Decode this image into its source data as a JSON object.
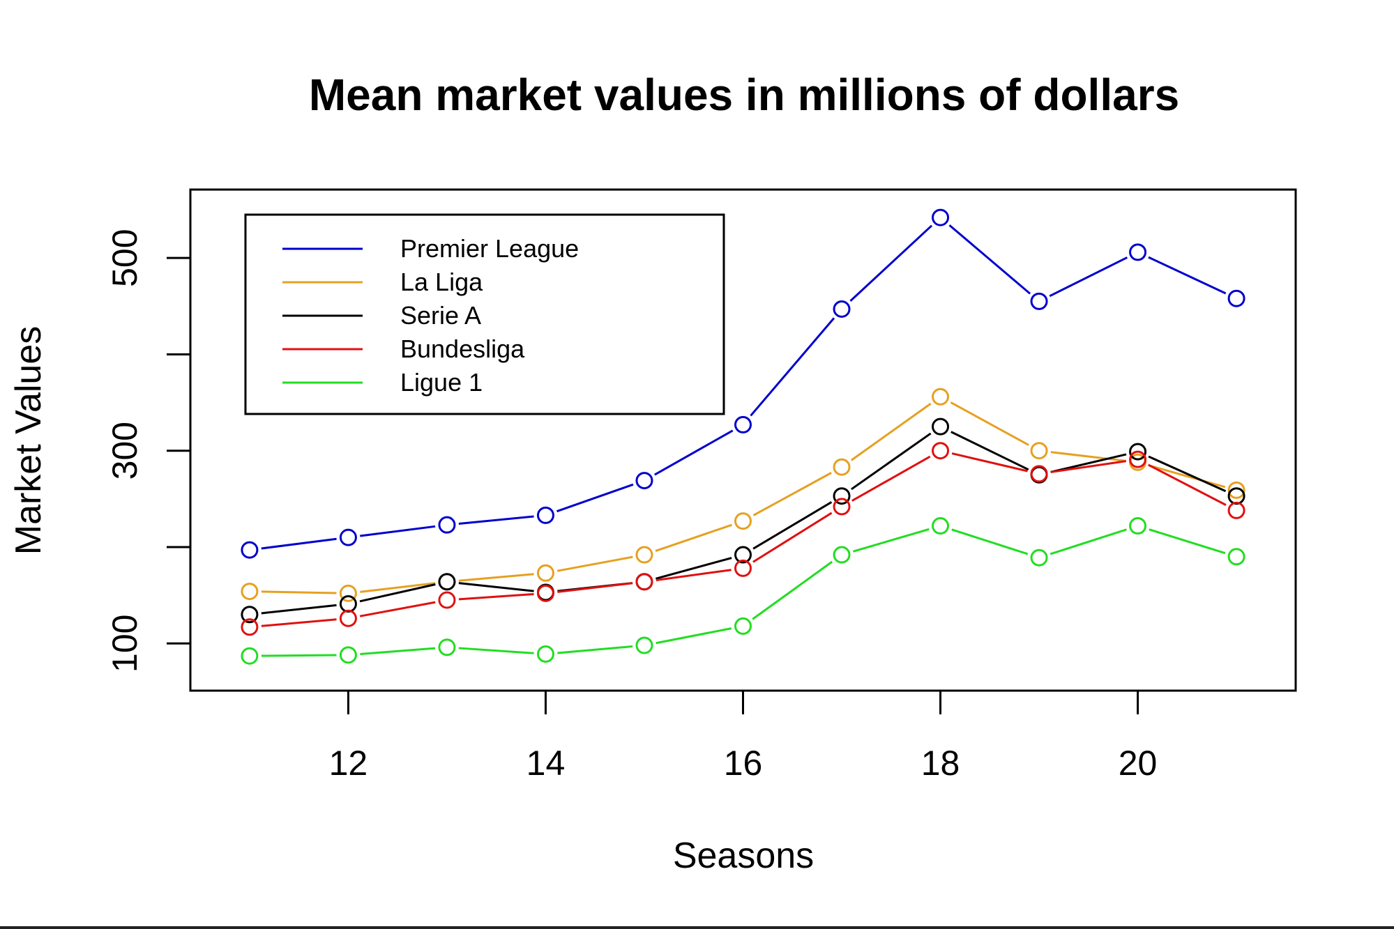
{
  "chart_data": {
    "type": "line",
    "title": "Mean market values in millions of dollars",
    "xlabel": "Seasons",
    "ylabel": "Market Values",
    "x": [
      11,
      12,
      13,
      14,
      15,
      16,
      17,
      18,
      19,
      20,
      21
    ],
    "xticks": [
      12,
      14,
      16,
      18,
      20
    ],
    "yticks": [
      100,
      300,
      500
    ],
    "xlim": [
      10.4,
      21.6
    ],
    "ylim": [
      51,
      571
    ],
    "grid": false,
    "legend_position": "top-left",
    "series": [
      {
        "name": "Premier League",
        "color": "#0000CD",
        "values": [
          197,
          210,
          223,
          233,
          269,
          327,
          447,
          542,
          455,
          506,
          458
        ]
      },
      {
        "name": "La Liga",
        "color": "#E6A020",
        "values": [
          154,
          152,
          164,
          173,
          192,
          227,
          283,
          356,
          300,
          288,
          259
        ]
      },
      {
        "name": "Serie A",
        "color": "#000000",
        "values": [
          130,
          141,
          164,
          153,
          164,
          192,
          253,
          325,
          275,
          299,
          253
        ]
      },
      {
        "name": "Bundesliga",
        "color": "#E01010",
        "values": [
          117,
          126,
          145,
          152,
          164,
          178,
          242,
          300,
          276,
          291,
          238
        ]
      },
      {
        "name": "Ligue 1",
        "color": "#22DD22",
        "values": [
          87,
          88,
          96,
          89,
          98,
          118,
          192,
          222,
          189,
          222,
          190
        ]
      }
    ]
  }
}
